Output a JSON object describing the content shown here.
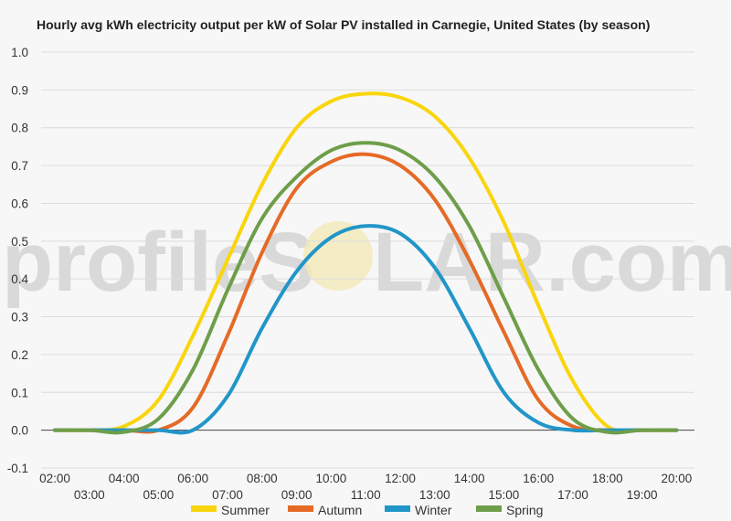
{
  "chart_data": {
    "type": "line",
    "title": "Hourly avg kWh electricity output per kW of Solar PV installed in Carnegie, United States (by season)",
    "xlabel": "",
    "ylabel": "",
    "ylim": [
      -0.1,
      1.0
    ],
    "yticks": [
      "-0.1",
      "0.0",
      "0.1",
      "0.2",
      "0.3",
      "0.4",
      "0.5",
      "0.6",
      "0.7",
      "0.8",
      "0.9",
      "1.0"
    ],
    "x": [
      "02:00",
      "03:00",
      "04:00",
      "05:00",
      "06:00",
      "07:00",
      "08:00",
      "09:00",
      "10:00",
      "11:00",
      "12:00",
      "13:00",
      "14:00",
      "15:00",
      "16:00",
      "17:00",
      "18:00",
      "19:00",
      "20:00"
    ],
    "grid": true,
    "legend": "bottom",
    "watermark": {
      "left": "profileS",
      "right": "LAR.com"
    },
    "series": [
      {
        "name": "Summer",
        "color": "#f9d50d",
        "values": [
          0.0,
          0.0,
          0.01,
          0.08,
          0.25,
          0.45,
          0.65,
          0.8,
          0.87,
          0.89,
          0.88,
          0.83,
          0.72,
          0.55,
          0.33,
          0.13,
          0.01,
          0.0,
          0.0
        ]
      },
      {
        "name": "Autumn",
        "color": "#e56a26",
        "values": [
          0.0,
          0.0,
          0.0,
          0.0,
          0.06,
          0.25,
          0.47,
          0.64,
          0.71,
          0.73,
          0.7,
          0.61,
          0.45,
          0.26,
          0.08,
          0.01,
          0.0,
          0.0,
          0.0
        ]
      },
      {
        "name": "Winter",
        "color": "#2196c8",
        "values": [
          0.0,
          0.0,
          0.0,
          0.0,
          0.0,
          0.09,
          0.27,
          0.42,
          0.51,
          0.54,
          0.52,
          0.43,
          0.27,
          0.1,
          0.02,
          0.0,
          0.0,
          0.0,
          0.0
        ]
      },
      {
        "name": "Spring",
        "color": "#6e9e4a",
        "values": [
          0.0,
          0.0,
          -0.005,
          0.03,
          0.16,
          0.37,
          0.56,
          0.67,
          0.74,
          0.76,
          0.74,
          0.67,
          0.54,
          0.35,
          0.16,
          0.03,
          -0.005,
          0.0,
          0.0
        ]
      }
    ]
  }
}
